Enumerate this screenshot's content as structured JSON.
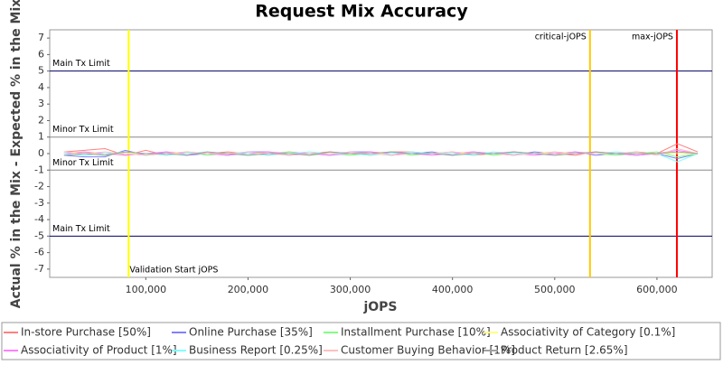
{
  "chart_data": {
    "type": "line",
    "title": "Request Mix Accuracy",
    "x_label": "jOPS",
    "y_label": "Actual % in the Mix - Expected % in the Mix",
    "xlim": [
      6000,
      654000
    ],
    "ylim": [
      -7.5,
      7.5
    ],
    "xticks": [
      {
        "value": 100000,
        "label": "100,000"
      },
      {
        "value": 200000,
        "label": "200,000"
      },
      {
        "value": 300000,
        "label": "300,000"
      },
      {
        "value": 400000,
        "label": "400,000"
      },
      {
        "value": 500000,
        "label": "500,000"
      },
      {
        "value": 600000,
        "label": "600,000"
      }
    ],
    "yticks": [
      -7,
      -6,
      -5,
      -4,
      -3,
      -2,
      -1,
      0,
      1,
      2,
      3,
      4,
      5,
      6,
      7
    ],
    "hlines": [
      {
        "value": 5,
        "label": "Main Tx Limit",
        "color": "#000066"
      },
      {
        "value": 1,
        "label": "Minor Tx Limit",
        "color": "#888888"
      },
      {
        "value": -1,
        "label": "Minor Tx Limit",
        "color": "#888888"
      },
      {
        "value": -5,
        "label": "Main Tx Limit",
        "color": "#000066"
      }
    ],
    "vlines": [
      {
        "value": 83200,
        "label": "Validation Start jOPS",
        "color": "#ffff00",
        "label_at": "bottom"
      },
      {
        "value": 534500,
        "label": "critical-jOPS",
        "color": "#ffc800",
        "label_at": "top"
      },
      {
        "value": 619500,
        "label": "max-jOPS",
        "color": "#ff0000",
        "label_at": "top"
      }
    ],
    "x": [
      20000,
      40000,
      60000,
      80000,
      100000,
      120000,
      140000,
      160000,
      180000,
      200000,
      220000,
      240000,
      260000,
      280000,
      300000,
      320000,
      340000,
      360000,
      380000,
      400000,
      420000,
      440000,
      460000,
      480000,
      500000,
      520000,
      540000,
      560000,
      580000,
      600000,
      620000,
      640000
    ],
    "series": [
      {
        "name": "In-store Purchase [50%]",
        "color": "#ff8080",
        "values": [
          0.1,
          0.2,
          0.3,
          -0.1,
          0.2,
          -0.1,
          0.1,
          0.0,
          0.1,
          0.0,
          -0.1,
          0.1,
          0.0,
          0.1,
          0.0,
          -0.1,
          0.1,
          0.1,
          0.0,
          0.1,
          -0.1,
          0.0,
          0.1,
          0.0,
          0.0,
          -0.1,
          0.1,
          0.0,
          0.1,
          0.0,
          0.6,
          0.1
        ]
      },
      {
        "name": "Online Purchase [35%]",
        "color": "#8080ff",
        "values": [
          -0.1,
          -0.2,
          -0.2,
          0.2,
          -0.1,
          0.1,
          -0.1,
          0.0,
          -0.1,
          0.1,
          0.1,
          -0.1,
          0.0,
          -0.1,
          0.1,
          0.1,
          -0.1,
          0.0,
          0.1,
          -0.1,
          0.1,
          0.0,
          -0.1,
          0.1,
          0.0,
          0.1,
          -0.1,
          0.0,
          -0.1,
          0.0,
          -0.3,
          0.0
        ]
      },
      {
        "name": "Installment Purchase [10%]",
        "color": "#80ff80",
        "values": [
          0.0,
          0.1,
          -0.1,
          0.0,
          -0.1,
          0.0,
          0.1,
          -0.1,
          0.0,
          -0.1,
          0.0,
          0.1,
          -0.1,
          0.0,
          -0.1,
          0.0,
          0.1,
          -0.1,
          0.0,
          0.0,
          0.1,
          -0.1,
          0.0,
          0.0,
          0.1,
          0.0,
          0.0,
          -0.1,
          0.0,
          0.1,
          -0.2,
          0.0
        ]
      },
      {
        "name": "Associativity of Category [0.1%]",
        "color": "#ffff80",
        "values": [
          0.0,
          0.0,
          0.0,
          0.0,
          0.0,
          0.0,
          0.0,
          0.0,
          0.0,
          0.0,
          0.0,
          0.0,
          0.0,
          0.0,
          0.0,
          0.0,
          0.0,
          0.0,
          0.0,
          0.0,
          0.0,
          0.0,
          0.0,
          0.0,
          0.0,
          0.0,
          0.0,
          0.0,
          0.0,
          0.0,
          0.0,
          0.0
        ]
      },
      {
        "name": "Associativity of Product [1%]",
        "color": "#ff80ff",
        "values": [
          0.0,
          0.1,
          0.0,
          -0.1,
          0.0,
          0.1,
          0.0,
          0.0,
          -0.1,
          0.0,
          0.1,
          0.0,
          0.0,
          -0.1,
          0.0,
          0.1,
          0.0,
          0.0,
          -0.1,
          0.0,
          0.1,
          0.0,
          0.0,
          -0.1,
          0.0,
          0.1,
          0.0,
          0.0,
          -0.1,
          0.0,
          0.2,
          0.0
        ]
      },
      {
        "name": "Business Report [0.25%]",
        "color": "#80ffff",
        "values": [
          0.0,
          -0.1,
          0.0,
          0.1,
          0.0,
          -0.1,
          0.0,
          0.1,
          0.0,
          0.0,
          -0.1,
          0.0,
          0.1,
          0.0,
          0.0,
          -0.1,
          0.0,
          0.1,
          0.0,
          0.0,
          -0.1,
          0.1,
          0.0,
          0.0,
          -0.1,
          0.0,
          0.0,
          0.1,
          0.0,
          0.0,
          -0.5,
          0.0
        ]
      },
      {
        "name": "Customer Buying Behavior [1%]",
        "color": "#ffc0c0",
        "values": [
          0.1,
          0.0,
          0.1,
          0.0,
          -0.1,
          0.0,
          0.1,
          0.0,
          0.0,
          0.1,
          0.0,
          -0.1,
          0.0,
          0.0,
          0.1,
          0.0,
          -0.1,
          0.0,
          0.0,
          0.1,
          0.0,
          0.0,
          -0.1,
          0.0,
          0.1,
          0.0,
          0.0,
          0.0,
          0.1,
          -0.1,
          0.3,
          0.0
        ]
      },
      {
        "name": "Product Return [2.65%]",
        "color": "#a0a0a0",
        "values": [
          -0.1,
          0.0,
          -0.1,
          0.1,
          0.0,
          0.0,
          -0.1,
          0.1,
          0.0,
          -0.1,
          0.0,
          0.0,
          -0.1,
          0.1,
          0.0,
          0.0,
          0.1,
          0.0,
          0.0,
          -0.1,
          0.0,
          0.0,
          0.1,
          0.0,
          -0.1,
          0.0,
          0.1,
          0.0,
          0.0,
          0.0,
          0.1,
          0.0
        ]
      }
    ]
  }
}
